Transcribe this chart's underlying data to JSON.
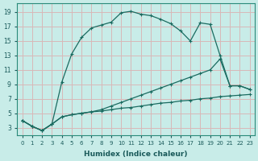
{
  "xlabel": "Humidex (Indice chaleur)",
  "bg_color": "#c8ece8",
  "grid_color": "#d8b8b8",
  "line_color": "#1a6b60",
  "xlim": [
    -0.5,
    23.5
  ],
  "ylim": [
    2.0,
    20.2
  ],
  "xticks": [
    0,
    1,
    2,
    3,
    4,
    5,
    6,
    7,
    8,
    9,
    10,
    11,
    12,
    13,
    14,
    15,
    16,
    17,
    18,
    19,
    20,
    21,
    22,
    23
  ],
  "yticks": [
    3,
    5,
    7,
    9,
    11,
    13,
    15,
    17,
    19
  ],
  "curve_x": [
    0,
    1,
    2,
    3,
    4,
    5,
    6,
    7,
    8,
    9,
    10,
    11,
    12,
    13,
    14,
    15,
    16,
    17,
    18,
    19,
    20,
    21,
    22,
    23
  ],
  "curve_y": [
    4.0,
    3.2,
    2.6,
    3.5,
    9.3,
    13.2,
    15.5,
    16.8,
    17.2,
    17.6,
    18.9,
    19.1,
    18.7,
    18.5,
    18.0,
    17.4,
    16.4,
    15.0,
    17.5,
    17.3,
    13.0,
    8.8,
    8.8,
    8.3
  ],
  "line_med_x": [
    0,
    1,
    2,
    3,
    4,
    5,
    6,
    7,
    8,
    9,
    10,
    11,
    12,
    13,
    14,
    15,
    16,
    17,
    18,
    19,
    20,
    21,
    22,
    23
  ],
  "line_med_y": [
    4.0,
    3.2,
    2.6,
    3.5,
    4.5,
    4.8,
    5.0,
    5.2,
    5.5,
    6.0,
    6.5,
    7.0,
    7.5,
    8.0,
    8.5,
    9.0,
    9.5,
    10.0,
    10.5,
    11.0,
    12.5,
    8.8,
    8.8,
    8.3
  ],
  "line_flat_x": [
    0,
    1,
    2,
    3,
    4,
    5,
    6,
    7,
    8,
    9,
    10,
    11,
    12,
    13,
    14,
    15,
    16,
    17,
    18,
    19,
    20,
    21,
    22,
    23
  ],
  "line_flat_y": [
    4.0,
    3.2,
    2.6,
    3.5,
    4.5,
    4.8,
    5.0,
    5.2,
    5.3,
    5.5,
    5.7,
    5.8,
    6.0,
    6.2,
    6.4,
    6.5,
    6.7,
    6.8,
    7.0,
    7.1,
    7.3,
    7.4,
    7.5,
    7.6
  ]
}
